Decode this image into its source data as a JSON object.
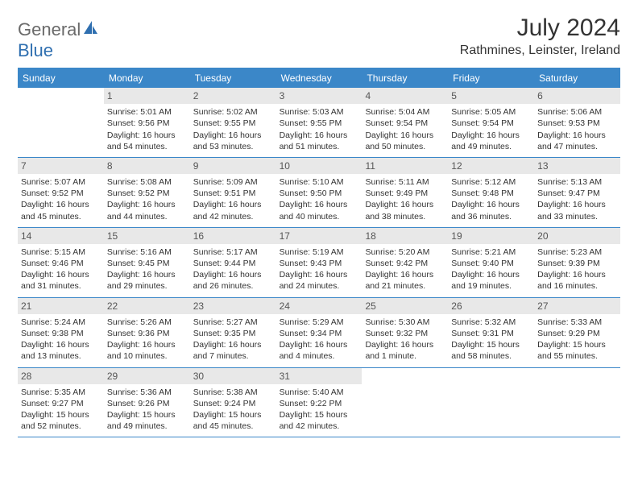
{
  "logo": {
    "word1": "General",
    "word2": "Blue"
  },
  "title": "July 2024",
  "location": "Rathmines, Leinster, Ireland",
  "colors": {
    "header_bg": "#3b87c8",
    "header_text": "#ffffff",
    "daynum_bg": "#e8e8e8",
    "daynum_text": "#555555",
    "body_text": "#333333",
    "logo_gray": "#6a6a6a",
    "logo_blue": "#2f6fb0",
    "page_bg": "#ffffff"
  },
  "day_names": [
    "Sunday",
    "Monday",
    "Tuesday",
    "Wednesday",
    "Thursday",
    "Friday",
    "Saturday"
  ],
  "weeks": [
    [
      {
        "n": "",
        "sr": "",
        "ss": "",
        "dl": ""
      },
      {
        "n": "1",
        "sr": "Sunrise: 5:01 AM",
        "ss": "Sunset: 9:56 PM",
        "dl": "Daylight: 16 hours and 54 minutes."
      },
      {
        "n": "2",
        "sr": "Sunrise: 5:02 AM",
        "ss": "Sunset: 9:55 PM",
        "dl": "Daylight: 16 hours and 53 minutes."
      },
      {
        "n": "3",
        "sr": "Sunrise: 5:03 AM",
        "ss": "Sunset: 9:55 PM",
        "dl": "Daylight: 16 hours and 51 minutes."
      },
      {
        "n": "4",
        "sr": "Sunrise: 5:04 AM",
        "ss": "Sunset: 9:54 PM",
        "dl": "Daylight: 16 hours and 50 minutes."
      },
      {
        "n": "5",
        "sr": "Sunrise: 5:05 AM",
        "ss": "Sunset: 9:54 PM",
        "dl": "Daylight: 16 hours and 49 minutes."
      },
      {
        "n": "6",
        "sr": "Sunrise: 5:06 AM",
        "ss": "Sunset: 9:53 PM",
        "dl": "Daylight: 16 hours and 47 minutes."
      }
    ],
    [
      {
        "n": "7",
        "sr": "Sunrise: 5:07 AM",
        "ss": "Sunset: 9:52 PM",
        "dl": "Daylight: 16 hours and 45 minutes."
      },
      {
        "n": "8",
        "sr": "Sunrise: 5:08 AM",
        "ss": "Sunset: 9:52 PM",
        "dl": "Daylight: 16 hours and 44 minutes."
      },
      {
        "n": "9",
        "sr": "Sunrise: 5:09 AM",
        "ss": "Sunset: 9:51 PM",
        "dl": "Daylight: 16 hours and 42 minutes."
      },
      {
        "n": "10",
        "sr": "Sunrise: 5:10 AM",
        "ss": "Sunset: 9:50 PM",
        "dl": "Daylight: 16 hours and 40 minutes."
      },
      {
        "n": "11",
        "sr": "Sunrise: 5:11 AM",
        "ss": "Sunset: 9:49 PM",
        "dl": "Daylight: 16 hours and 38 minutes."
      },
      {
        "n": "12",
        "sr": "Sunrise: 5:12 AM",
        "ss": "Sunset: 9:48 PM",
        "dl": "Daylight: 16 hours and 36 minutes."
      },
      {
        "n": "13",
        "sr": "Sunrise: 5:13 AM",
        "ss": "Sunset: 9:47 PM",
        "dl": "Daylight: 16 hours and 33 minutes."
      }
    ],
    [
      {
        "n": "14",
        "sr": "Sunrise: 5:15 AM",
        "ss": "Sunset: 9:46 PM",
        "dl": "Daylight: 16 hours and 31 minutes."
      },
      {
        "n": "15",
        "sr": "Sunrise: 5:16 AM",
        "ss": "Sunset: 9:45 PM",
        "dl": "Daylight: 16 hours and 29 minutes."
      },
      {
        "n": "16",
        "sr": "Sunrise: 5:17 AM",
        "ss": "Sunset: 9:44 PM",
        "dl": "Daylight: 16 hours and 26 minutes."
      },
      {
        "n": "17",
        "sr": "Sunrise: 5:19 AM",
        "ss": "Sunset: 9:43 PM",
        "dl": "Daylight: 16 hours and 24 minutes."
      },
      {
        "n": "18",
        "sr": "Sunrise: 5:20 AM",
        "ss": "Sunset: 9:42 PM",
        "dl": "Daylight: 16 hours and 21 minutes."
      },
      {
        "n": "19",
        "sr": "Sunrise: 5:21 AM",
        "ss": "Sunset: 9:40 PM",
        "dl": "Daylight: 16 hours and 19 minutes."
      },
      {
        "n": "20",
        "sr": "Sunrise: 5:23 AM",
        "ss": "Sunset: 9:39 PM",
        "dl": "Daylight: 16 hours and 16 minutes."
      }
    ],
    [
      {
        "n": "21",
        "sr": "Sunrise: 5:24 AM",
        "ss": "Sunset: 9:38 PM",
        "dl": "Daylight: 16 hours and 13 minutes."
      },
      {
        "n": "22",
        "sr": "Sunrise: 5:26 AM",
        "ss": "Sunset: 9:36 PM",
        "dl": "Daylight: 16 hours and 10 minutes."
      },
      {
        "n": "23",
        "sr": "Sunrise: 5:27 AM",
        "ss": "Sunset: 9:35 PM",
        "dl": "Daylight: 16 hours and 7 minutes."
      },
      {
        "n": "24",
        "sr": "Sunrise: 5:29 AM",
        "ss": "Sunset: 9:34 PM",
        "dl": "Daylight: 16 hours and 4 minutes."
      },
      {
        "n": "25",
        "sr": "Sunrise: 5:30 AM",
        "ss": "Sunset: 9:32 PM",
        "dl": "Daylight: 16 hours and 1 minute."
      },
      {
        "n": "26",
        "sr": "Sunrise: 5:32 AM",
        "ss": "Sunset: 9:31 PM",
        "dl": "Daylight: 15 hours and 58 minutes."
      },
      {
        "n": "27",
        "sr": "Sunrise: 5:33 AM",
        "ss": "Sunset: 9:29 PM",
        "dl": "Daylight: 15 hours and 55 minutes."
      }
    ],
    [
      {
        "n": "28",
        "sr": "Sunrise: 5:35 AM",
        "ss": "Sunset: 9:27 PM",
        "dl": "Daylight: 15 hours and 52 minutes."
      },
      {
        "n": "29",
        "sr": "Sunrise: 5:36 AM",
        "ss": "Sunset: 9:26 PM",
        "dl": "Daylight: 15 hours and 49 minutes."
      },
      {
        "n": "30",
        "sr": "Sunrise: 5:38 AM",
        "ss": "Sunset: 9:24 PM",
        "dl": "Daylight: 15 hours and 45 minutes."
      },
      {
        "n": "31",
        "sr": "Sunrise: 5:40 AM",
        "ss": "Sunset: 9:22 PM",
        "dl": "Daylight: 15 hours and 42 minutes."
      },
      {
        "n": "",
        "sr": "",
        "ss": "",
        "dl": ""
      },
      {
        "n": "",
        "sr": "",
        "ss": "",
        "dl": ""
      },
      {
        "n": "",
        "sr": "",
        "ss": "",
        "dl": ""
      }
    ]
  ]
}
